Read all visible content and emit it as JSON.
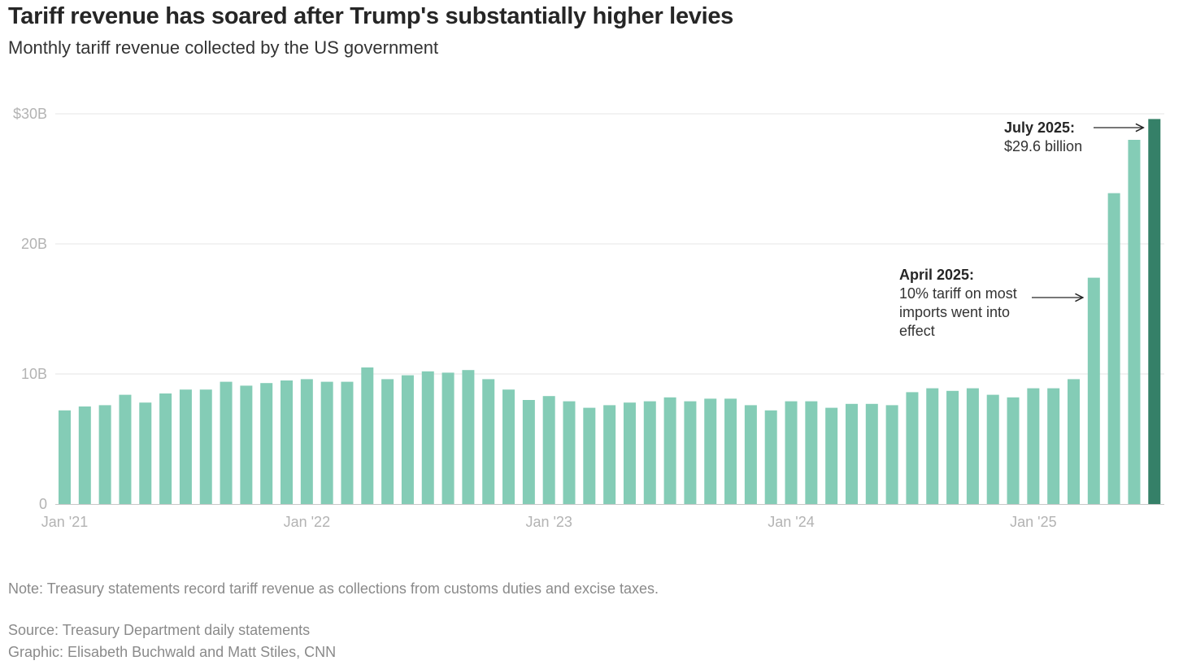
{
  "title": "Tariff revenue has soared after Trump's substantially higher levies",
  "subtitle": "Monthly tariff revenue collected by the US government",
  "note": "Note: Treasury statements record tariff revenue as collections from customs duties and excise taxes.",
  "source": "Source: Treasury Department daily statements",
  "credit": "Graphic: Elisabeth Buchwald and Matt Stiles, CNN",
  "colors": {
    "bar": "#84ccb6",
    "highlight_bar": "#358068",
    "gridline": "#e6e6e6",
    "tick_text": "#b3b3b3"
  },
  "chart_data": {
    "type": "bar",
    "unit": "billions of US dollars",
    "categories": [
      "2021-01",
      "2021-02",
      "2021-03",
      "2021-04",
      "2021-05",
      "2021-06",
      "2021-07",
      "2021-08",
      "2021-09",
      "2021-10",
      "2021-11",
      "2021-12",
      "2022-01",
      "2022-02",
      "2022-03",
      "2022-04",
      "2022-05",
      "2022-06",
      "2022-07",
      "2022-08",
      "2022-09",
      "2022-10",
      "2022-11",
      "2022-12",
      "2023-01",
      "2023-02",
      "2023-03",
      "2023-04",
      "2023-05",
      "2023-06",
      "2023-07",
      "2023-08",
      "2023-09",
      "2023-10",
      "2023-11",
      "2023-12",
      "2024-01",
      "2024-02",
      "2024-03",
      "2024-04",
      "2024-05",
      "2024-06",
      "2024-07",
      "2024-08",
      "2024-09",
      "2024-10",
      "2024-11",
      "2024-12",
      "2025-01",
      "2025-02",
      "2025-03",
      "2025-04",
      "2025-05",
      "2025-06",
      "2025-07"
    ],
    "values": [
      7.2,
      7.5,
      7.6,
      8.4,
      7.8,
      8.5,
      8.8,
      8.8,
      9.4,
      9.1,
      9.3,
      9.5,
      9.6,
      9.4,
      9.4,
      10.5,
      9.6,
      9.9,
      10.2,
      10.1,
      10.3,
      9.6,
      8.8,
      8.0,
      8.3,
      7.9,
      7.4,
      7.6,
      7.8,
      7.9,
      8.2,
      7.9,
      8.1,
      8.1,
      7.6,
      7.2,
      7.9,
      7.9,
      7.4,
      7.7,
      7.7,
      7.6,
      8.6,
      8.9,
      8.7,
      8.9,
      8.4,
      8.2,
      8.9,
      8.9,
      9.6,
      17.4,
      23.9,
      28.0,
      29.6
    ],
    "highlight_index": 54,
    "ylim": [
      0,
      30
    ],
    "yticks": [
      {
        "value": 0,
        "label": "0"
      },
      {
        "value": 10,
        "label": "10B"
      },
      {
        "value": 20,
        "label": "20B"
      },
      {
        "value": 30,
        "label": "$30B"
      }
    ],
    "xticks": [
      {
        "index": 0,
        "label": "Jan '21"
      },
      {
        "index": 12,
        "label": "Jan '22"
      },
      {
        "index": 24,
        "label": "Jan '23"
      },
      {
        "index": 36,
        "label": "Jan '24"
      },
      {
        "index": 48,
        "label": "Jan '25"
      }
    ],
    "grid": true,
    "annotations": [
      {
        "target_index": 54,
        "title": "July 2025:",
        "lines": [
          "$29.6 billion"
        ]
      },
      {
        "target_index": 51,
        "title": "April 2025:",
        "lines": [
          "10% tariff on most",
          "imports went into",
          "effect"
        ]
      }
    ]
  }
}
